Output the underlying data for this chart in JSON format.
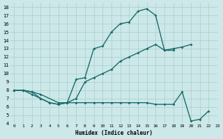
{
  "xlabel": "Humidex (Indice chaleur)",
  "xlim": [
    -0.5,
    23
  ],
  "ylim": [
    4,
    18.5
  ],
  "xticks": [
    0,
    1,
    2,
    3,
    4,
    5,
    6,
    7,
    8,
    9,
    10,
    11,
    12,
    13,
    14,
    15,
    16,
    17,
    18,
    19,
    20,
    21,
    22,
    23
  ],
  "yticks": [
    4,
    5,
    6,
    7,
    8,
    9,
    10,
    11,
    12,
    13,
    14,
    15,
    16,
    17,
    18
  ],
  "bg_color": "#cce8e8",
  "grid_color": "#aacccc",
  "line_color": "#1a6b6b",
  "line1_x": [
    0,
    1,
    2,
    3,
    4,
    5,
    6,
    7,
    8,
    9,
    10,
    11,
    12,
    13,
    14,
    15,
    16,
    17,
    18
  ],
  "line1_y": [
    8,
    8,
    7.8,
    7.0,
    6.5,
    6.3,
    6.5,
    9.3,
    9.5,
    13.0,
    13.3,
    15.0,
    16.0,
    16.2,
    17.5,
    17.8,
    17.0,
    12.8,
    12.8
  ],
  "line2_x": [
    0,
    1,
    2,
    3,
    5,
    6,
    7,
    8,
    9,
    10,
    11,
    12,
    13,
    14,
    15,
    16,
    17,
    18,
    19,
    20
  ],
  "line2_y": [
    8,
    8,
    7.8,
    7.5,
    6.5,
    6.5,
    7.0,
    9.0,
    9.5,
    10.0,
    10.5,
    11.5,
    12.0,
    12.5,
    13.0,
    13.5,
    12.8,
    13.0,
    13.2,
    13.5
  ],
  "line3_x": [
    0,
    1,
    2,
    3,
    4,
    5,
    6,
    7,
    8,
    9,
    10,
    11,
    12,
    13,
    14,
    15,
    16,
    17,
    18,
    19,
    20,
    21,
    22
  ],
  "line3_y": [
    8,
    8,
    7.5,
    7.0,
    6.5,
    6.3,
    6.5,
    6.5,
    6.5,
    6.5,
    6.5,
    6.5,
    6.5,
    6.5,
    6.5,
    6.5,
    6.3,
    6.3,
    6.3,
    7.8,
    4.3,
    4.5,
    5.5
  ],
  "lw": 1.0,
  "ms": 2.0,
  "font_family": "monospace"
}
